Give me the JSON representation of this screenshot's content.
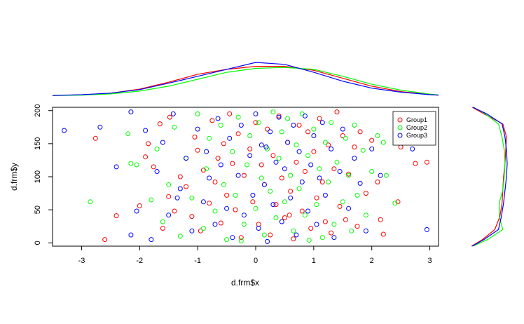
{
  "chart_data": [
    {
      "type": "scatter",
      "title": "",
      "xlabel": "d.frm$x",
      "ylabel": "d.frm$y",
      "xlim": [
        -3.5,
        3.15
      ],
      "ylim": [
        -5,
        205
      ],
      "xticks": [
        -3,
        -2,
        -1,
        0,
        1,
        2,
        3
      ],
      "yticks": [
        0,
        50,
        100,
        150,
        200
      ],
      "xtick_labels": [
        "-3",
        "-2",
        "-1",
        "0",
        "1",
        "2",
        "3"
      ],
      "ytick_labels": [
        "0",
        "50",
        "100",
        "150",
        "200"
      ],
      "grid": false,
      "legend": {
        "position": "top-right"
      },
      "series": [
        {
          "name": "Group1",
          "color": "#ff0000",
          "points": [
            [
              -2.6,
              5
            ],
            [
              -2.76,
              158
            ],
            [
              -2.4,
              41
            ],
            [
              -2.0,
              56
            ],
            [
              -1.9,
              130
            ],
            [
              -1.85,
              150
            ],
            [
              -1.76,
              115
            ],
            [
              -1.65,
              180
            ],
            [
              -1.6,
              22
            ],
            [
              -1.5,
              70
            ],
            [
              -1.48,
              190
            ],
            [
              -1.3,
              100
            ],
            [
              -1.2,
              85
            ],
            [
              -1.1,
              40
            ],
            [
              -1.05,
              160
            ],
            [
              -1.0,
              140
            ],
            [
              -0.95,
              18
            ],
            [
              -0.9,
              110
            ],
            [
              -0.8,
              60
            ],
            [
              -0.75,
              185
            ],
            [
              -0.7,
              92
            ],
            [
              -0.6,
              30
            ],
            [
              -0.55,
              150
            ],
            [
              -0.5,
              72
            ],
            [
              -0.45,
              195
            ],
            [
              -0.4,
              120
            ],
            [
              -0.35,
              50
            ],
            [
              -0.3,
              165
            ],
            [
              -0.25,
              8
            ],
            [
              -0.2,
              102
            ],
            [
              -0.1,
              142
            ],
            [
              -0.05,
              62
            ],
            [
              0.0,
              182
            ],
            [
              0.05,
              28
            ],
            [
              0.1,
              118
            ],
            [
              0.15,
              88
            ],
            [
              0.2,
              172
            ],
            [
              0.25,
              12
            ],
            [
              0.3,
              132
            ],
            [
              0.35,
              58
            ],
            [
              0.4,
              192
            ],
            [
              0.45,
              98
            ],
            [
              0.5,
              38
            ],
            [
              0.55,
              152
            ],
            [
              0.6,
              78
            ],
            [
              0.65,
              6
            ],
            [
              0.7,
              122
            ],
            [
              0.75,
              178
            ],
            [
              0.8,
              48
            ],
            [
              0.85,
              108
            ],
            [
              0.9,
              168
            ],
            [
              0.95,
              22
            ],
            [
              1.0,
              138
            ],
            [
              1.05,
              68
            ],
            [
              1.1,
              188
            ],
            [
              1.15,
              92
            ],
            [
              1.2,
              32
            ],
            [
              1.25,
              148
            ],
            [
              1.3,
              15
            ],
            [
              1.35,
              112
            ],
            [
              1.4,
              198
            ],
            [
              1.45,
              55
            ],
            [
              1.5,
              162
            ],
            [
              1.55,
              35
            ],
            [
              1.6,
              104
            ],
            [
              1.7,
              145
            ],
            [
              1.75,
              25
            ],
            [
              1.8,
              168
            ],
            [
              1.9,
              75
            ],
            [
              2.0,
              155
            ],
            [
              2.1,
              92
            ],
            [
              2.15,
              35
            ],
            [
              2.2,
              13
            ],
            [
              2.45,
              62
            ],
            [
              2.5,
              145
            ],
            [
              2.75,
              120
            ],
            [
              2.95,
              122
            ],
            [
              -1.4,
              48
            ],
            [
              -0.65,
              128
            ],
            [
              0.58,
              42
            ]
          ]
        },
        {
          "name": "Group2",
          "color": "#00ff00",
          "points": [
            [
              -2.85,
              62
            ],
            [
              -2.2,
              165
            ],
            [
              -2.15,
              120
            ],
            [
              -2.05,
              118
            ],
            [
              -1.8,
              65
            ],
            [
              -1.7,
              142
            ],
            [
              -1.6,
              32
            ],
            [
              -1.5,
              88
            ],
            [
              -1.4,
              175
            ],
            [
              -1.3,
              10
            ],
            [
              -1.2,
              128
            ],
            [
              -1.1,
              68
            ],
            [
              -1.0,
              195
            ],
            [
              -0.9,
              22
            ],
            [
              -0.85,
              112
            ],
            [
              -0.8,
              158
            ],
            [
              -0.7,
              48
            ],
            [
              -0.6,
              178
            ],
            [
              -0.55,
              88
            ],
            [
              -0.5,
              5
            ],
            [
              -0.4,
              138
            ],
            [
              -0.35,
              72
            ],
            [
              -0.3,
              190
            ],
            [
              -0.2,
              28
            ],
            [
              -0.15,
              118
            ],
            [
              -0.1,
              162
            ],
            [
              0.0,
              52
            ],
            [
              0.05,
              182
            ],
            [
              0.1,
              98
            ],
            [
              0.15,
              12
            ],
            [
              0.2,
              142
            ],
            [
              0.25,
              78
            ],
            [
              0.3,
              198
            ],
            [
              0.35,
              38
            ],
            [
              0.4,
              128
            ],
            [
              0.45,
              168
            ],
            [
              0.5,
              62
            ],
            [
              0.55,
              188
            ],
            [
              0.6,
              102
            ],
            [
              0.65,
              18
            ],
            [
              0.7,
              148
            ],
            [
              0.75,
              82
            ],
            [
              0.8,
              195
            ],
            [
              0.85,
              42
            ],
            [
              0.9,
              132
            ],
            [
              1.0,
              172
            ],
            [
              1.05,
              58
            ],
            [
              1.1,
              112
            ],
            [
              1.15,
              8
            ],
            [
              1.2,
              152
            ],
            [
              1.25,
              92
            ],
            [
              1.3,
              182
            ],
            [
              1.35,
              28
            ],
            [
              1.4,
              122
            ],
            [
              1.5,
              62
            ],
            [
              1.55,
              158
            ],
            [
              1.6,
              102
            ],
            [
              1.65,
              18
            ],
            [
              1.7,
              178
            ],
            [
              1.75,
              72
            ],
            [
              1.85,
              140
            ],
            [
              1.9,
              42
            ],
            [
              2.0,
              108
            ],
            [
              2.1,
              162
            ],
            [
              2.2,
              152
            ],
            [
              2.25,
              102
            ],
            [
              2.4,
              60
            ],
            [
              2.65,
              165
            ],
            [
              -0.25,
              3
            ],
            [
              0.92,
              4
            ]
          ]
        },
        {
          "name": "Group3",
          "color": "#0000ff",
          "points": [
            [
              -3.3,
              170
            ],
            [
              -2.68,
              175
            ],
            [
              -2.4,
              115
            ],
            [
              -2.15,
              198
            ],
            [
              -2.05,
              48
            ],
            [
              -2.15,
              12
            ],
            [
              -1.9,
              170
            ],
            [
              -1.8,
              5
            ],
            [
              -1.7,
              108
            ],
            [
              -1.6,
              152
            ],
            [
              -1.5,
              42
            ],
            [
              -1.42,
              195
            ],
            [
              -1.3,
              82
            ],
            [
              -1.2,
              128
            ],
            [
              -1.1,
              18
            ],
            [
              -1.0,
              172
            ],
            [
              -0.9,
              62
            ],
            [
              -0.85,
              138
            ],
            [
              -0.8,
              98
            ],
            [
              -0.7,
              28
            ],
            [
              -0.65,
              188
            ],
            [
              -0.6,
              118
            ],
            [
              -0.5,
              52
            ],
            [
              -0.45,
              158
            ],
            [
              -0.4,
              8
            ],
            [
              -0.3,
              102
            ],
            [
              -0.25,
              178
            ],
            [
              -0.2,
              42
            ],
            [
              -0.1,
              132
            ],
            [
              -0.05,
              72
            ],
            [
              0.0,
              195
            ],
            [
              0.05,
              22
            ],
            [
              0.1,
              148
            ],
            [
              0.15,
              88
            ],
            [
              0.2,
              2
            ],
            [
              0.25,
              168
            ],
            [
              0.3,
              58
            ],
            [
              0.35,
              122
            ],
            [
              0.4,
              190
            ],
            [
              0.45,
              32
            ],
            [
              0.5,
              112
            ],
            [
              0.55,
              152
            ],
            [
              0.6,
              68
            ],
            [
              0.65,
              178
            ],
            [
              0.7,
              12
            ],
            [
              0.75,
              138
            ],
            [
              0.8,
              92
            ],
            [
              0.85,
              192
            ],
            [
              0.9,
              48
            ],
            [
              0.95,
              118
            ],
            [
              1.0,
              162
            ],
            [
              1.05,
              28
            ],
            [
              1.1,
              98
            ],
            [
              1.15,
              182
            ],
            [
              1.2,
              72
            ],
            [
              1.3,
              142
            ],
            [
              1.35,
              8
            ],
            [
              1.45,
              108
            ],
            [
              1.5,
              172
            ],
            [
              1.6,
              52
            ],
            [
              1.7,
              128
            ],
            [
              1.8,
              90
            ],
            [
              1.9,
              18
            ],
            [
              2.0,
              142
            ],
            [
              2.15,
              102
            ],
            [
              2.5,
              168
            ],
            [
              2.7,
              142
            ],
            [
              2.95,
              20
            ],
            [
              -1.35,
              68
            ],
            [
              0.18,
              145
            ]
          ]
        }
      ]
    },
    {
      "type": "line",
      "title": "",
      "series": [
        {
          "name": "Group1",
          "color": "#ff0000",
          "x": [
            -3.5,
            -3,
            -2.5,
            -2,
            -1.5,
            -1,
            -0.5,
            0,
            0.5,
            1,
            1.5,
            2,
            2.5,
            3,
            3.15
          ],
          "y": [
            0.005,
            0.012,
            0.03,
            0.07,
            0.14,
            0.22,
            0.27,
            0.3,
            0.3,
            0.26,
            0.18,
            0.1,
            0.045,
            0.015,
            0.01
          ]
        },
        {
          "name": "Group2",
          "color": "#00ff00",
          "x": [
            -3.5,
            -3,
            -2.5,
            -2,
            -1.5,
            -1,
            -0.5,
            0,
            0.5,
            1,
            1.5,
            2,
            2.5,
            3,
            3.15
          ],
          "y": [
            0.005,
            0.01,
            0.022,
            0.05,
            0.1,
            0.17,
            0.24,
            0.28,
            0.29,
            0.27,
            0.2,
            0.12,
            0.06,
            0.02,
            0.012
          ]
        },
        {
          "name": "Group3",
          "color": "#0000ff",
          "x": [
            -3.5,
            -3,
            -2.5,
            -2,
            -1.5,
            -1,
            -0.5,
            0,
            0.5,
            1,
            1.5,
            2,
            2.5,
            3,
            3.15
          ],
          "y": [
            0.006,
            0.014,
            0.03,
            0.065,
            0.13,
            0.2,
            0.27,
            0.34,
            0.32,
            0.24,
            0.15,
            0.08,
            0.04,
            0.014,
            0.01
          ]
        }
      ]
    },
    {
      "type": "line",
      "title": "",
      "orientation": "vertical",
      "series": [
        {
          "name": "Group1",
          "color": "#ff0000",
          "y": [
            -5,
            5,
            20,
            40,
            60,
            80,
            100,
            120,
            140,
            160,
            180,
            195,
            205
          ],
          "x": [
            0.0003,
            0.0018,
            0.0035,
            0.0042,
            0.0045,
            0.0046,
            0.0047,
            0.0049,
            0.005,
            0.0051,
            0.0046,
            0.002,
            0.0004
          ]
        },
        {
          "name": "Group2",
          "color": "#00ff00",
          "y": [
            -5,
            5,
            20,
            40,
            60,
            80,
            100,
            120,
            140,
            160,
            180,
            195,
            205
          ],
          "x": [
            0.0005,
            0.0025,
            0.0046,
            0.0041,
            0.0041,
            0.0046,
            0.0048,
            0.0049,
            0.0048,
            0.0045,
            0.004,
            0.0022,
            0.0006
          ]
        },
        {
          "name": "Group3",
          "color": "#0000ff",
          "y": [
            -5,
            5,
            20,
            40,
            60,
            80,
            100,
            120,
            140,
            160,
            180,
            195,
            205
          ],
          "x": [
            0.0004,
            0.002,
            0.004,
            0.0044,
            0.0047,
            0.0049,
            0.0051,
            0.0052,
            0.0051,
            0.0049,
            0.0045,
            0.0024,
            0.0005
          ]
        }
      ]
    }
  ]
}
